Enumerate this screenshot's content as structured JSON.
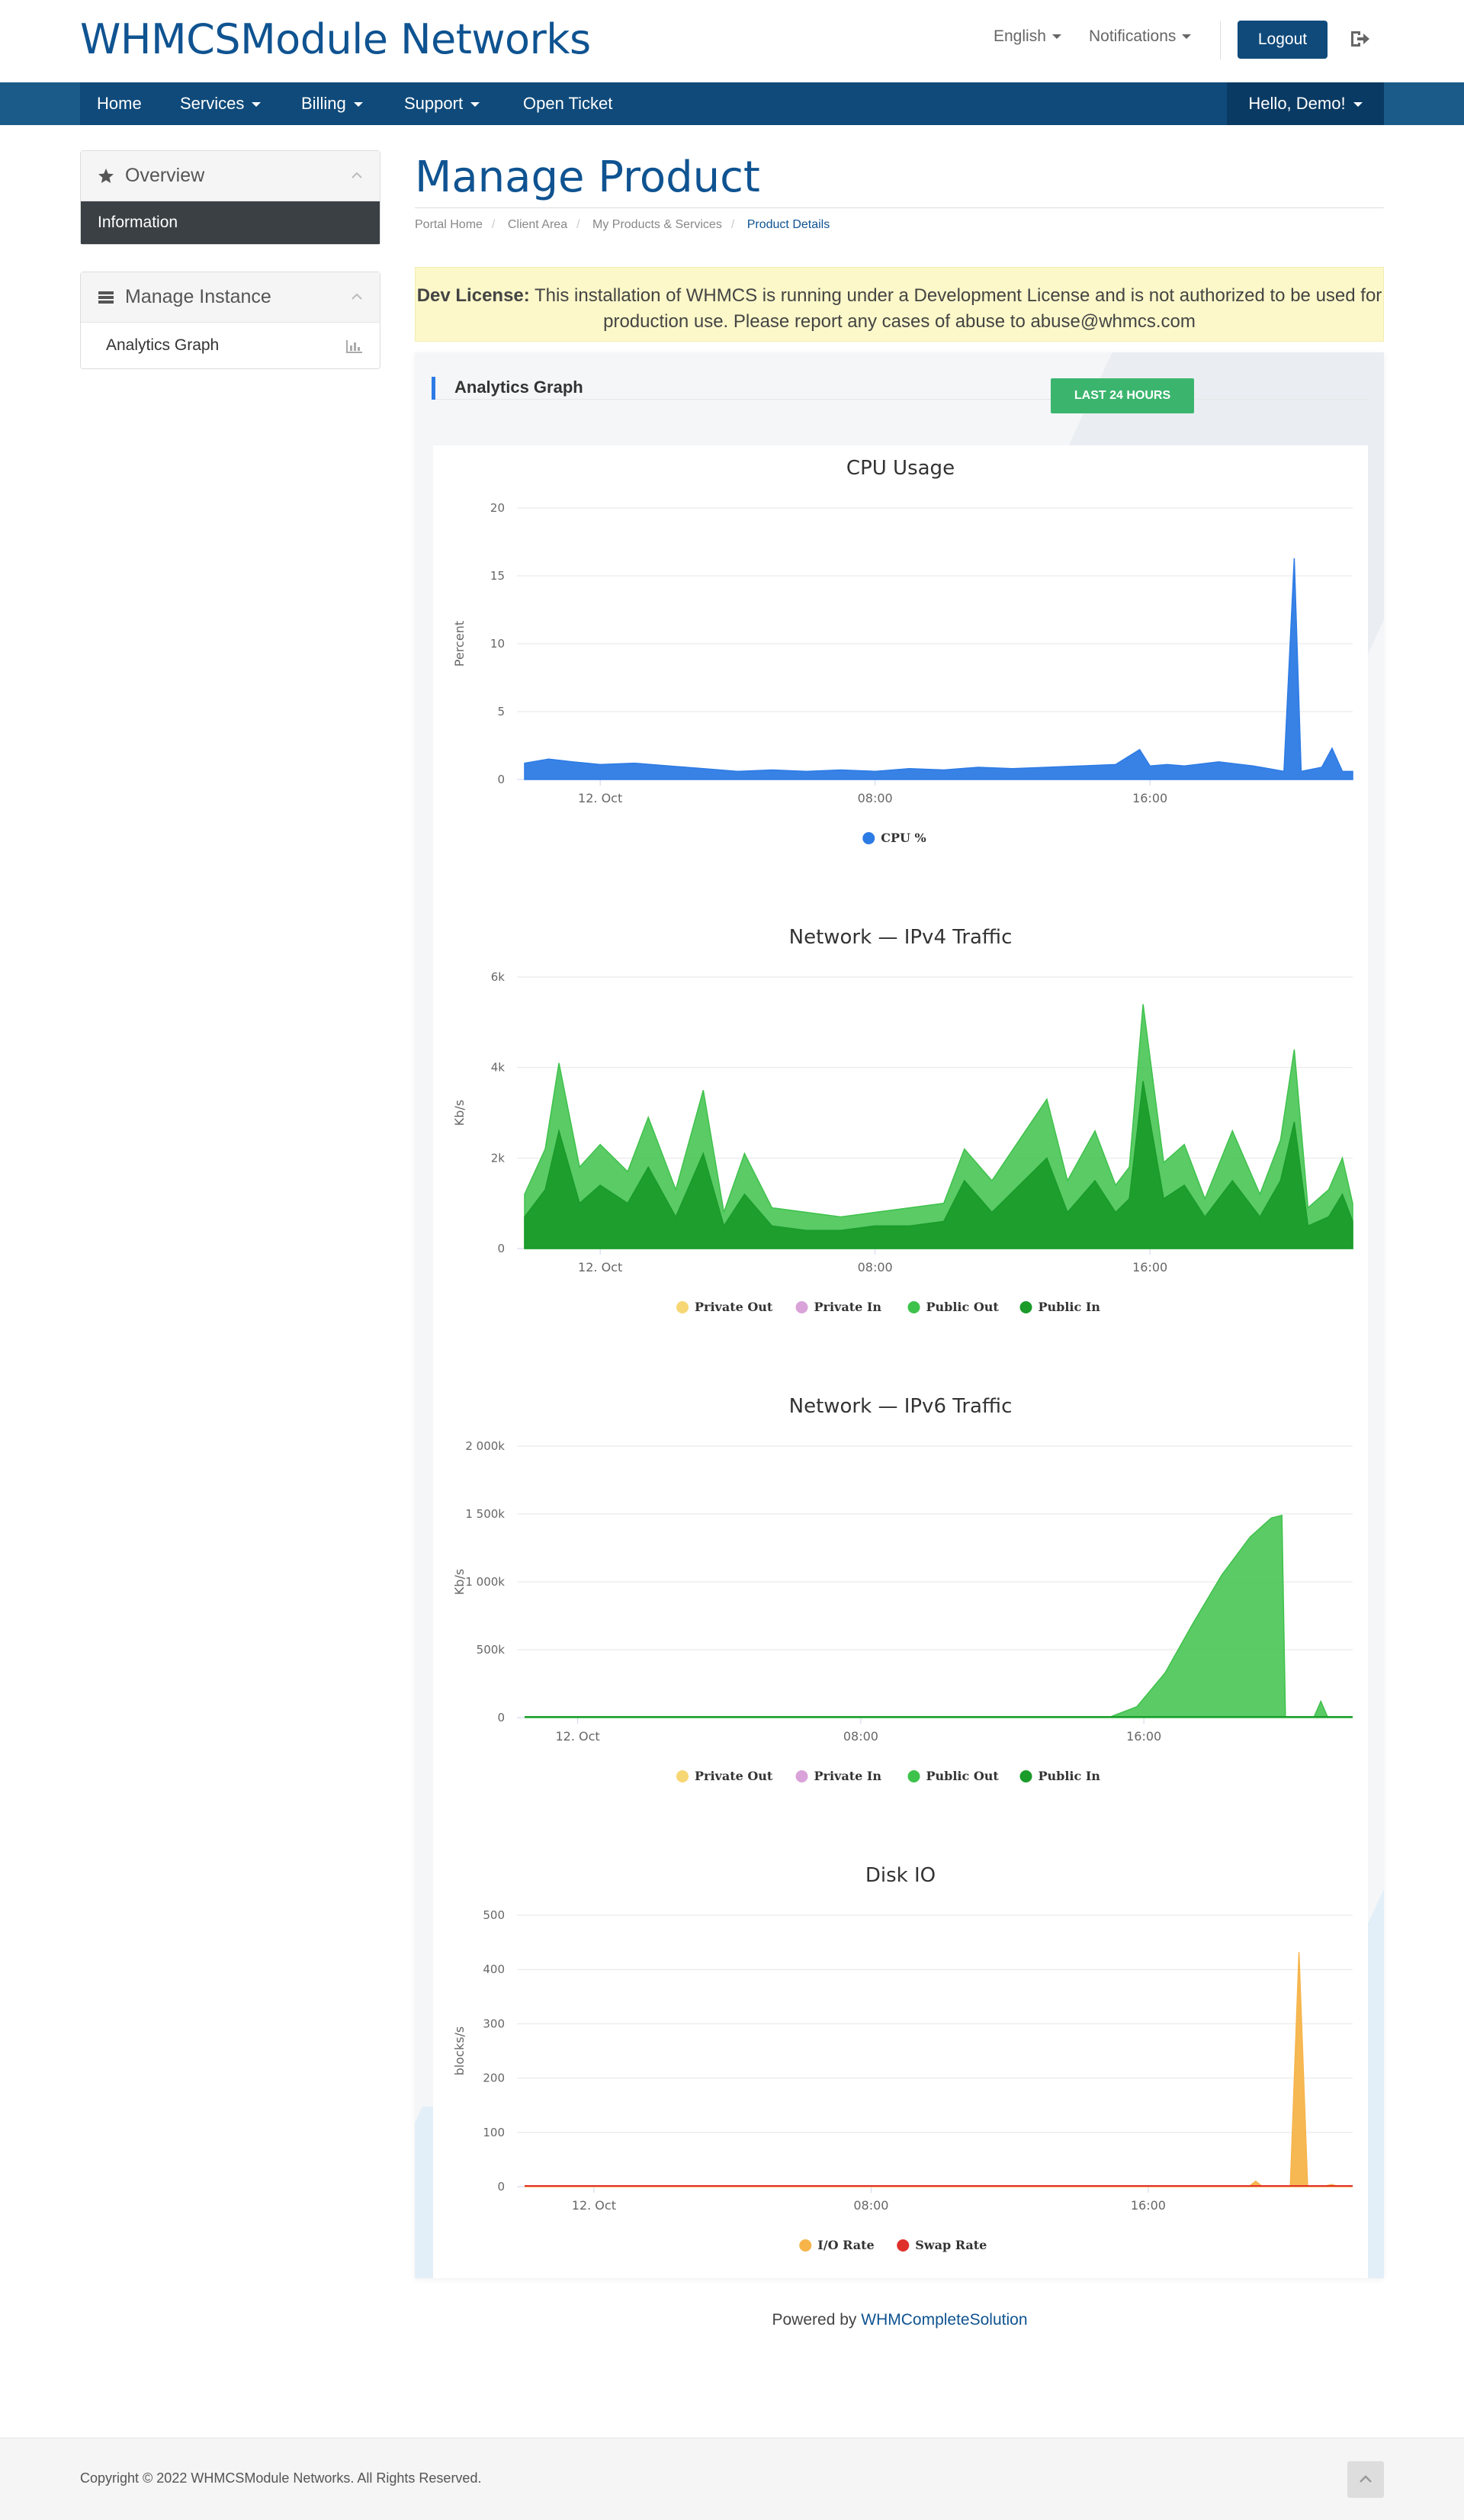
{
  "header": {
    "brand": "WHMCSModule Networks",
    "language": "English",
    "notifications": "Notifications",
    "logout": "Logout"
  },
  "nav": {
    "items": [
      "Home",
      "Services",
      "Billing",
      "Support",
      "Open Ticket"
    ],
    "user": "Hello, Demo!"
  },
  "sidebar": {
    "overview_title": "Overview",
    "overview_active": "Information",
    "manage_title": "Manage Instance",
    "manage_item": "Analytics Graph"
  },
  "main": {
    "title": "Manage Product",
    "breadcrumb": [
      "Portal Home",
      "Client Area",
      "My Products & Services",
      "Product Details"
    ],
    "alert_label": "Dev License:",
    "alert_text": "This installation of WHMCS is running under a Development License and is not authorized to be used for production use. Please report any cases of abuse to abuse@whmcs.com",
    "section_title": "Analytics Graph",
    "range_button": "LAST 24 HOURS"
  },
  "colors": {
    "brand": "#0f5391",
    "nav": "#0f4a7a",
    "cpu": "#2d7be5",
    "private_out": "#f7d774",
    "private_in": "#d9a3d9",
    "public_out": "#3ec24b",
    "public_in": "#1a9b2a",
    "io_rate": "#f6b44a",
    "swap_rate": "#e0302a",
    "range_button": "#3bb56e"
  },
  "chart_data": [
    {
      "type": "area",
      "title": "CPU Usage",
      "ylabel": "Percent",
      "ylim": [
        0,
        20
      ],
      "y_ticks": [
        "0",
        "5",
        "10",
        "15",
        "20"
      ],
      "x_ticks": [
        "12. Oct",
        "08:00",
        "16:00"
      ],
      "x_tick_hours": [
        0,
        8,
        16
      ],
      "x_range_hours": [
        -2.2,
        21.9
      ],
      "series": [
        {
          "name": "CPU %",
          "color": "#2d7be5",
          "x": [
            -2.2,
            -1.5,
            -0.8,
            0,
            1,
            2,
            3,
            4,
            5,
            6,
            7,
            8,
            9,
            10,
            11,
            12,
            13,
            14,
            15,
            15.7,
            16,
            16.5,
            17,
            18,
            19,
            19.9,
            20.2,
            20.4,
            21,
            21.3,
            21.6,
            21.9
          ],
          "values": [
            1.2,
            1.5,
            1.3,
            1.1,
            1.2,
            1.0,
            0.8,
            0.6,
            0.7,
            0.6,
            0.7,
            0.6,
            0.8,
            0.7,
            0.9,
            0.8,
            0.9,
            1.0,
            1.1,
            2.2,
            1.0,
            1.1,
            1.0,
            1.3,
            1.0,
            0.6,
            16.3,
            0.6,
            0.9,
            2.3,
            0.6,
            0.6
          ]
        }
      ]
    },
    {
      "type": "area",
      "title": "Network — IPv4 Traffic",
      "ylabel": "Kb/s",
      "ylim": [
        0,
        6000
      ],
      "y_ticks": [
        "0",
        "2k",
        "4k",
        "6k"
      ],
      "x_ticks": [
        "12. Oct",
        "08:00",
        "16:00"
      ],
      "x_tick_hours": [
        0,
        8,
        16
      ],
      "x_range_hours": [
        -2.2,
        21.9
      ],
      "legend": [
        "Private Out",
        "Private In",
        "Public Out",
        "Public In"
      ],
      "series": [
        {
          "name": "Private Out",
          "color": "#f7d774",
          "x": [
            -2.2,
            21.9
          ],
          "values": [
            0,
            0
          ]
        },
        {
          "name": "Private In",
          "color": "#d9a3d9",
          "x": [
            -2.2,
            21.9
          ],
          "values": [
            0,
            0
          ]
        },
        {
          "name": "Public Out",
          "color": "#3ec24b",
          "x": [
            -2.2,
            -1.6,
            -1.2,
            -0.6,
            0,
            0.8,
            1.4,
            2.2,
            3.0,
            3.6,
            4.2,
            5.0,
            6.0,
            7.0,
            8.0,
            9.0,
            10.0,
            10.6,
            11.4,
            12.2,
            13.0,
            13.6,
            14.4,
            15.0,
            15.4,
            15.8,
            16.4,
            17.0,
            17.6,
            18.4,
            19.2,
            19.8,
            20.2,
            20.6,
            21.2,
            21.6,
            21.9
          ],
          "values": [
            1200,
            2200,
            4100,
            1800,
            2300,
            1700,
            2900,
            1300,
            3500,
            800,
            2100,
            900,
            800,
            700,
            800,
            900,
            1000,
            2200,
            1500,
            2400,
            3300,
            1500,
            2600,
            1400,
            1800,
            5400,
            1900,
            2300,
            1100,
            2600,
            1200,
            2400,
            4400,
            900,
            1300,
            2000,
            1000
          ]
        },
        {
          "name": "Public In",
          "color": "#1a9b2a",
          "x": [
            -2.2,
            -1.6,
            -1.2,
            -0.6,
            0,
            0.8,
            1.4,
            2.2,
            3.0,
            3.6,
            4.2,
            5.0,
            6.0,
            7.0,
            8.0,
            9.0,
            10.0,
            10.6,
            11.4,
            12.2,
            13.0,
            13.6,
            14.4,
            15.0,
            15.4,
            15.8,
            16.4,
            17.0,
            17.6,
            18.4,
            19.2,
            19.8,
            20.2,
            20.6,
            21.2,
            21.6,
            21.9
          ],
          "values": [
            700,
            1300,
            2600,
            1000,
            1400,
            1000,
            1800,
            700,
            2100,
            500,
            1200,
            500,
            400,
            400,
            500,
            500,
            600,
            1500,
            800,
            1400,
            2000,
            800,
            1500,
            800,
            1100,
            3700,
            1100,
            1400,
            700,
            1500,
            700,
            1500,
            2800,
            500,
            700,
            1200,
            600
          ]
        }
      ]
    },
    {
      "type": "area",
      "title": "Network — IPv6 Traffic",
      "ylabel": "Kb/s",
      "ylim": [
        0,
        2000
      ],
      "y_ticks": [
        "0",
        "500k",
        "1 000k",
        "1 500k",
        "2 000k"
      ],
      "x_ticks": [
        "12. Oct",
        "08:00",
        "16:00"
      ],
      "x_tick_hours": [
        0,
        8,
        16
      ],
      "x_range_hours": [
        -1.5,
        21.9
      ],
      "legend": [
        "Private Out",
        "Private In",
        "Public Out",
        "Public In"
      ],
      "series": [
        {
          "name": "Private Out",
          "color": "#f7d774",
          "x": [
            -1.5,
            21.9
          ],
          "values": [
            0,
            0
          ]
        },
        {
          "name": "Private In",
          "color": "#d9a3d9",
          "x": [
            -1.5,
            21.9
          ],
          "values": [
            0,
            0
          ]
        },
        {
          "name": "Public Out",
          "color": "#3ec24b",
          "x": [
            -1.5,
            15.0,
            15.8,
            16.6,
            17.4,
            18.2,
            19.0,
            19.6,
            19.9,
            20.0,
            20.8,
            21.0,
            21.2,
            21.9
          ],
          "values": [
            0,
            0,
            80,
            330,
            700,
            1050,
            1330,
            1470,
            1490,
            0,
            0,
            120,
            0,
            0
          ]
        },
        {
          "name": "Public In",
          "color": "#1a9b2a",
          "x": [
            -1.5,
            21.9
          ],
          "values": [
            0,
            0
          ]
        }
      ]
    },
    {
      "type": "area",
      "title": "Disk IO",
      "ylabel": "blocks/s",
      "ylim": [
        0,
        500
      ],
      "y_ticks": [
        "0",
        "100",
        "200",
        "300",
        "400",
        "500"
      ],
      "x_ticks": [
        "12. Oct",
        "08:00",
        "16:00"
      ],
      "x_tick_hours": [
        0,
        8,
        16
      ],
      "x_range_hours": [
        -2.0,
        21.9
      ],
      "legend": [
        "I/O Rate",
        "Swap Rate"
      ],
      "series": [
        {
          "name": "I/O Rate",
          "color": "#f6b44a",
          "x": [
            -2.0,
            18.9,
            19.1,
            19.3,
            20.0,
            20.1,
            20.35,
            20.6,
            21.0,
            21.3,
            21.5,
            21.9
          ],
          "values": [
            0,
            0,
            10,
            0,
            0,
            0,
            432,
            0,
            0,
            4,
            0,
            0
          ]
        },
        {
          "name": "Swap Rate",
          "color": "#e0302a",
          "x": [
            -2.0,
            21.9
          ],
          "values": [
            0,
            0
          ]
        }
      ]
    }
  ],
  "footer": {
    "powered_prefix": "Powered by",
    "powered_link": "WHMCompleteSolution",
    "copyright": "Copyright © 2022 WHMCSModule Networks. All Rights Reserved."
  }
}
